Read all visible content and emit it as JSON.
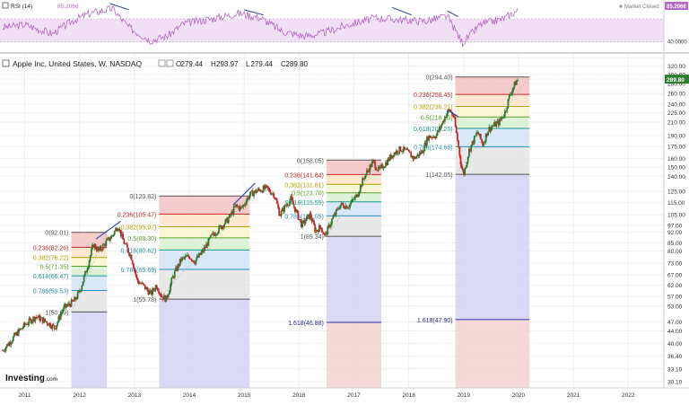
{
  "rsi": {
    "label": "RSI (14)",
    "value": "85.2066",
    "market_status": "Market Closed",
    "axis_value_label": "85.2066",
    "axis_ticks": [
      "40.0000"
    ]
  },
  "header": {
    "title": "Apple Inc, United States, W, NASDAQ",
    "open_label": "O",
    "open": "279.44",
    "high_label": "H",
    "high": "293.97",
    "low_label": "L",
    "low": "279.44",
    "close_label": "C",
    "close": "289.80"
  },
  "price_label": "289.80",
  "logo": {
    "text": "Investing",
    "suffix": ".com"
  },
  "colors": {
    "up": "#26a69a",
    "down": "#ef5350",
    "candle_up": "#2e7d32",
    "candle_down": "#c62828",
    "rsi_line": "#b469c4",
    "rsi_band": "#f1dff6",
    "trend": "#3949ab",
    "price_badge": "#2e7d32",
    "rsi_badge": "#b469c4",
    "fib_red": "#f5c2c2",
    "fib_orange": "#fde3c8",
    "fib_yellow": "#f7f6cc",
    "fib_green": "#d8f0d2",
    "fib_teal": "#d2ecec",
    "fib_blue": "#d2e4f7",
    "fib_gray": "#e4e4e4",
    "fib_purple": "#d2d2f3",
    "fib_pink": "#f3d2d2",
    "lbl_red": "#c62828",
    "lbl_gold": "#b5a000",
    "lbl_green": "#5aa02c",
    "lbl_teal": "#1a9a8a",
    "lbl_blue": "#2a8fc0",
    "lbl_gray": "#555555",
    "lbl_navy": "#2b2ba8"
  },
  "chart_data": {
    "type": "candlestick",
    "title": "Apple Inc, United States, W, NASDAQ",
    "y_scale": "log",
    "ylim": [
      28.7,
      350
    ],
    "xlim": [
      2010.55,
      2022.65
    ],
    "x_ticks": [
      "2011",
      "2012",
      "2013",
      "2014",
      "2015",
      "2016",
      "2017",
      "2018",
      "2019",
      "2020",
      "2021",
      "2022"
    ],
    "y_ticks": [
      "30.10",
      "33.10",
      "36.40",
      "40.00",
      "44.00",
      "47.00",
      "53.00",
      "57.00",
      "62.00",
      "67.00",
      "73.00",
      "80.00",
      "85.00",
      "92.00",
      "97.00",
      "105.00",
      "115.00",
      "125.00",
      "140.00",
      "150.00",
      "160.00",
      "175.00",
      "190.00",
      "210.00",
      "225.00",
      "240.00",
      "260.00",
      "280.00",
      "300.00",
      "320.00",
      "340.00"
    ],
    "price_path": [
      [
        2010.6,
        38
      ],
      [
        2010.8,
        42
      ],
      [
        2011.0,
        46
      ],
      [
        2011.2,
        49
      ],
      [
        2011.4,
        47
      ],
      [
        2011.55,
        45
      ],
      [
        2011.7,
        52
      ],
      [
        2011.9,
        55
      ],
      [
        2012.0,
        59
      ],
      [
        2012.15,
        72
      ],
      [
        2012.25,
        84
      ],
      [
        2012.35,
        80
      ],
      [
        2012.5,
        86
      ],
      [
        2012.6,
        90
      ],
      [
        2012.7,
        97
      ],
      [
        2012.8,
        86
      ],
      [
        2012.95,
        76
      ],
      [
        2013.05,
        64
      ],
      [
        2013.15,
        62
      ],
      [
        2013.3,
        58
      ],
      [
        2013.4,
        62
      ],
      [
        2013.5,
        57
      ],
      [
        2013.58,
        55.78
      ],
      [
        2013.7,
        66
      ],
      [
        2013.85,
        75
      ],
      [
        2014.0,
        77
      ],
      [
        2014.1,
        74
      ],
      [
        2014.25,
        80
      ],
      [
        2014.4,
        89
      ],
      [
        2014.55,
        95
      ],
      [
        2014.7,
        101
      ],
      [
        2014.85,
        112
      ],
      [
        2014.95,
        110
      ],
      [
        2015.1,
        122
      ],
      [
        2015.25,
        126
      ],
      [
        2015.4,
        128
      ],
      [
        2015.55,
        122
      ],
      [
        2015.65,
        105
      ],
      [
        2015.75,
        112
      ],
      [
        2015.85,
        118
      ],
      [
        2015.95,
        107
      ],
      [
        2016.05,
        97
      ],
      [
        2016.2,
        105
      ],
      [
        2016.3,
        93
      ],
      [
        2016.4,
        96
      ],
      [
        2016.47,
        89.34
      ],
      [
        2016.6,
        101
      ],
      [
        2016.75,
        113
      ],
      [
        2016.9,
        112
      ],
      [
        2017.05,
        121
      ],
      [
        2017.2,
        141
      ],
      [
        2017.35,
        156
      ],
      [
        2017.45,
        146
      ],
      [
        2017.6,
        156
      ],
      [
        2017.7,
        165
      ],
      [
        2017.85,
        172
      ],
      [
        2017.95,
        169
      ],
      [
        2018.1,
        160
      ],
      [
        2018.25,
        169
      ],
      [
        2018.35,
        188
      ],
      [
        2018.5,
        190
      ],
      [
        2018.6,
        207
      ],
      [
        2018.7,
        226
      ],
      [
        2018.75,
        230
      ],
      [
        2018.82,
        218
      ],
      [
        2018.9,
        178
      ],
      [
        2018.96,
        150
      ],
      [
        2019.0,
        142.05
      ],
      [
        2019.1,
        170
      ],
      [
        2019.25,
        195
      ],
      [
        2019.35,
        178
      ],
      [
        2019.45,
        199
      ],
      [
        2019.55,
        205
      ],
      [
        2019.65,
        210
      ],
      [
        2019.75,
        225
      ],
      [
        2019.85,
        260
      ],
      [
        2019.95,
        283
      ],
      [
        2020.0,
        289.8
      ]
    ],
    "trend_lines": [
      [
        [
          2012.3,
          87.5
        ],
        [
          2012.75,
          100
        ]
      ],
      [
        [
          2014.8,
          113
        ],
        [
          2015.2,
          133
        ]
      ],
      [
        [
          2018.7,
          230
        ],
        [
          2018.9,
          219
        ]
      ]
    ],
    "rsi_trend_lines": [
      [
        [
          2012.55,
          97
        ],
        [
          2012.9,
          86
        ]
      ],
      [
        [
          2015.0,
          86
        ],
        [
          2015.35,
          77
        ]
      ],
      [
        [
          2017.7,
          90
        ],
        [
          2018.05,
          77
        ]
      ],
      [
        [
          2018.7,
          84
        ],
        [
          2018.9,
          74
        ]
      ]
    ],
    "rsi_series": [
      [
        2010.6,
        55
      ],
      [
        2011.0,
        60
      ],
      [
        2011.5,
        44
      ],
      [
        2011.9,
        68
      ],
      [
        2012.2,
        80
      ],
      [
        2012.6,
        88
      ],
      [
        2012.9,
        55
      ],
      [
        2013.3,
        32
      ],
      [
        2013.6,
        40
      ],
      [
        2013.9,
        62
      ],
      [
        2014.4,
        70
      ],
      [
        2014.9,
        80
      ],
      [
        2015.3,
        72
      ],
      [
        2015.7,
        48
      ],
      [
        2016.1,
        40
      ],
      [
        2016.4,
        44
      ],
      [
        2016.9,
        60
      ],
      [
        2017.4,
        72
      ],
      [
        2017.9,
        68
      ],
      [
        2018.3,
        66
      ],
      [
        2018.7,
        75
      ],
      [
        2018.98,
        28
      ],
      [
        2019.3,
        60
      ],
      [
        2019.7,
        70
      ],
      [
        2020.0,
        85.2
      ]
    ],
    "fib_sets": [
      {
        "x_range": [
          2011.85,
          2012.5
        ],
        "levels": [
          {
            "level": "0",
            "value": 92.01,
            "label": "0(92.01)",
            "color": "lbl_gray",
            "fill": "fib_red"
          },
          {
            "level": "0.236",
            "value": 82.26,
            "label": "0.236(82.26)",
            "color": "lbl_red",
            "fill": "fib_orange"
          },
          {
            "level": "0.382",
            "value": 76.22,
            "label": "0.382(76.22)",
            "color": "lbl_gold",
            "fill": "fib_yellow"
          },
          {
            "level": "0.5",
            "value": 71.35,
            "label": "0.5(71.35)",
            "color": "lbl_green",
            "fill": "fib_green"
          },
          {
            "level": "0.618",
            "value": 66.47,
            "label": "0.618(66.47)",
            "color": "lbl_teal",
            "fill": "fib_blue"
          },
          {
            "level": "0.786",
            "value": 59.53,
            "label": "0.786(59.53)",
            "color": "lbl_blue",
            "fill": "fib_gray"
          },
          {
            "level": "1",
            "value": 50.69,
            "label": "1(50.69)",
            "color": "lbl_gray",
            "fill": "fib_purple"
          }
        ],
        "bottom": 28.7
      },
      {
        "x_range": [
          2013.45,
          2015.1
        ],
        "levels": [
          {
            "level": "0",
            "value": 120.82,
            "label": "0(120.82)",
            "color": "lbl_gray",
            "fill": "fib_red"
          },
          {
            "level": "0.236",
            "value": 105.47,
            "label": "0.236(105.47)",
            "color": "lbl_red",
            "fill": "fib_orange"
          },
          {
            "level": "0.382",
            "value": 95.97,
            "label": "0.382(95.97)",
            "color": "lbl_gold",
            "fill": "fib_yellow"
          },
          {
            "level": "0.5",
            "value": 88.3,
            "label": "0.5(88.30)",
            "color": "lbl_green",
            "fill": "fib_green"
          },
          {
            "level": "0.618",
            "value": 80.62,
            "label": "0.618(80.62)",
            "color": "lbl_teal",
            "fill": "fib_blue"
          },
          {
            "level": "0.786",
            "value": 69.69,
            "label": "0.786(69.69)",
            "color": "lbl_blue",
            "fill": "fib_gray"
          },
          {
            "level": "1",
            "value": 55.78,
            "label": "1(55.78)",
            "color": "lbl_gray",
            "fill": "fib_purple"
          }
        ],
        "bottom": 28.7
      },
      {
        "x_range": [
          2016.5,
          2017.5
        ],
        "levels": [
          {
            "level": "0",
            "value": 158.05,
            "label": "0(158.05)",
            "color": "lbl_gray",
            "fill": "fib_red"
          },
          {
            "level": "0.236",
            "value": 141.84,
            "label": "0.236(141.84)",
            "color": "lbl_red",
            "fill": "fib_orange"
          },
          {
            "level": "0.382",
            "value": 131.81,
            "label": "0.382(131.81)",
            "color": "lbl_gold",
            "fill": "fib_yellow"
          },
          {
            "level": "0.5",
            "value": 123.7,
            "label": "0.5(123.70)",
            "color": "lbl_green",
            "fill": "fib_green"
          },
          {
            "level": "0.618",
            "value": 115.59,
            "label": "0.618(115.59)",
            "color": "lbl_teal",
            "fill": "fib_blue"
          },
          {
            "level": "0.786",
            "value": 104.05,
            "label": "0.786(104.05)",
            "color": "lbl_blue",
            "fill": "fib_gray"
          },
          {
            "level": "1",
            "value": 89.34,
            "label": "1(89.34)",
            "color": "lbl_gray",
            "fill": "fib_purple"
          },
          {
            "level": "1.618",
            "value": 46.88,
            "label": "1.618(46.88)",
            "color": "lbl_navy",
            "fill": "fib_pink"
          }
        ],
        "bottom": 28.7
      },
      {
        "x_range": [
          2018.85,
          2020.2
        ],
        "levels": [
          {
            "level": "0",
            "value": 294.4,
            "label": "0(294.40)",
            "color": "lbl_gray",
            "fill": "fib_red"
          },
          {
            "level": "0.236",
            "value": 258.45,
            "label": "0.236(258.45)",
            "color": "lbl_red",
            "fill": "fib_orange"
          },
          {
            "level": "0.382",
            "value": 236.21,
            "label": "0.382(236.21)",
            "color": "lbl_gold",
            "fill": "fib_yellow"
          },
          {
            "level": "0.5",
            "value": 218.23,
            "label": "0.5(218.23)",
            "color": "lbl_green",
            "fill": "fib_green"
          },
          {
            "level": "0.618",
            "value": 200.25,
            "label": "0.618(200.25)",
            "color": "lbl_teal",
            "fill": "fib_blue"
          },
          {
            "level": "0.786",
            "value": 174.66,
            "label": "0.786(174.66)",
            "color": "lbl_blue",
            "fill": "fib_gray"
          },
          {
            "level": "1",
            "value": 142.05,
            "label": "1(142.05)",
            "color": "lbl_gray",
            "fill": "fib_purple"
          },
          {
            "level": "1.618",
            "value": 47.9,
            "label": "1.618(47.90)",
            "color": "lbl_navy",
            "fill": "fib_pink"
          }
        ],
        "bottom": 28.7
      }
    ]
  }
}
